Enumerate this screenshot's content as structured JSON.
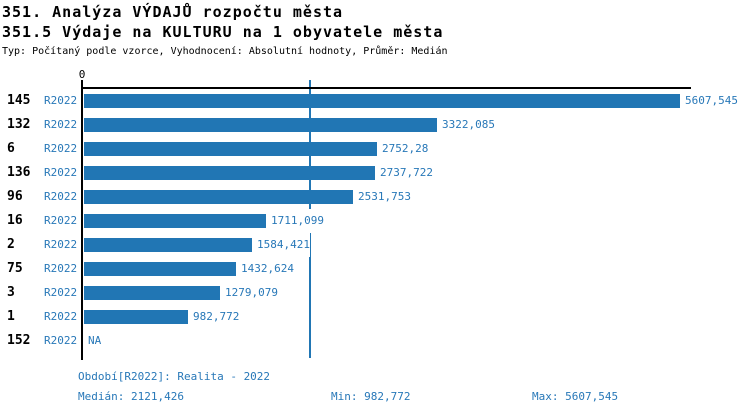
{
  "header": {
    "title_line1": "351. Analýza VÝDAJŮ rozpočtu města",
    "title_line2": "351.5 Výdaje na KULTURU na 1 obyvatele města",
    "subtitle": "Typ: Počítaný podle vzorce, Vyhodnocení: Absolutní hodnoty, Průměr: Medián"
  },
  "chart_data": {
    "type": "bar",
    "orientation": "horizontal",
    "title": "351.5 Výdaje na KULTURU na 1 obyvatele města",
    "axis": {
      "zero_label": "0"
    },
    "series_label": "R2022",
    "categories": [
      "145",
      "132",
      "6",
      "136",
      "96",
      "16",
      "2",
      "75",
      "3",
      "1",
      "152"
    ],
    "values": [
      5607.545,
      3322.085,
      2752.28,
      2737.722,
      2531.753,
      1711.099,
      1584.421,
      1432.624,
      1279.079,
      982.772,
      null
    ],
    "value_labels": [
      "5607,545",
      "3322,085",
      "2752,28",
      "2737,722",
      "2531,753",
      "1711,099",
      "1584,421",
      "1432,624",
      "1279,079",
      "982,772",
      "NA"
    ],
    "xlim": [
      0,
      5607.545
    ],
    "median_value": 2121.426,
    "grid": false,
    "legend": "none",
    "bar_color": "#2176b4",
    "label_color": "#2878b8",
    "median_line_color": "#2176b4"
  },
  "footer": {
    "period": "Období[R2022]: Realita - 2022",
    "median": "Medián: 2121,426",
    "min": "Min: 982,772",
    "max": "Max: 5607,545"
  }
}
